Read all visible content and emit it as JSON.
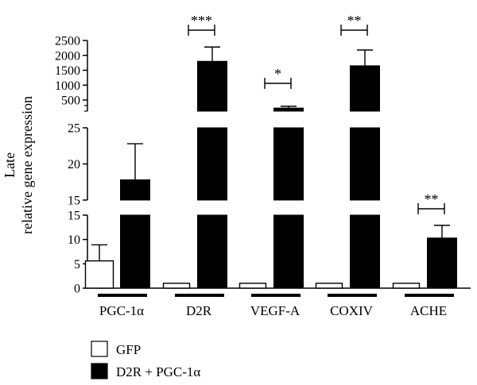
{
  "chart_data": {
    "type": "bar",
    "ylabel_line1": "Late",
    "ylabel_line2": "relative gene expression",
    "categories": [
      "PGC-1α",
      "D2R",
      "VEGF-A",
      "COXIV",
      "ACHE"
    ],
    "series": [
      {
        "name": "GFP",
        "color": "#ffffff",
        "values": [
          5.6,
          1,
          1,
          1,
          1
        ],
        "errors": [
          3.3,
          0,
          0,
          0,
          0
        ]
      },
      {
        "name": "D2R + PGC-1α",
        "color": "#000000",
        "values": [
          17.8,
          1800,
          230,
          1650,
          10.3
        ],
        "errors": [
          5.0,
          480,
          60,
          530,
          2.6
        ]
      }
    ],
    "significance": [
      "",
      "***",
      "*",
      "**",
      "**"
    ],
    "broken_axis": [
      {
        "range": [
          0,
          15
        ],
        "ticks": [
          "0",
          "5",
          "10",
          "15"
        ]
      },
      {
        "range": [
          15,
          25
        ],
        "ticks": [
          "15",
          "20",
          "25"
        ]
      },
      {
        "range": [
          25,
          2500
        ],
        "ticks": [
          "500",
          "1000",
          "1500",
          "2000",
          "2500"
        ]
      }
    ],
    "legend": [
      "GFP",
      "D2R + PGC-1α"
    ],
    "legend_position": "bottom-left"
  }
}
